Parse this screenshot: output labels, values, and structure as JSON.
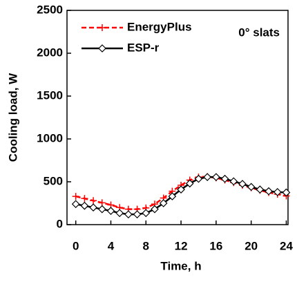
{
  "chart_data": {
    "type": "line",
    "x": [
      0,
      1,
      2,
      3,
      4,
      5,
      6,
      7,
      8,
      9,
      10,
      11,
      12,
      13,
      14,
      15,
      16,
      17,
      18,
      19,
      20,
      21,
      22,
      23,
      24
    ],
    "series": [
      {
        "name": "EnergyPlus",
        "color": "#ff0000",
        "dash": true,
        "marker": "plus",
        "values": [
          330,
          305,
          280,
          255,
          230,
          200,
          180,
          180,
          195,
          240,
          310,
          390,
          460,
          520,
          555,
          560,
          545,
          520,
          490,
          460,
          430,
          400,
          375,
          355,
          335
        ]
      },
      {
        "name": "ESP-r",
        "color": "#000000",
        "dash": false,
        "marker": "diamond",
        "values": [
          240,
          220,
          200,
          180,
          160,
          135,
          120,
          120,
          135,
          180,
          250,
          330,
          410,
          480,
          535,
          555,
          555,
          535,
          505,
          475,
          440,
          410,
          390,
          380,
          375
        ]
      }
    ],
    "annotation": "0° slats",
    "xlabel": "Time, h",
    "ylabel": "Cooling load, W",
    "xlim": [
      -1,
      24.2
    ],
    "ylim": [
      0,
      2500
    ],
    "xticks": [
      0,
      4,
      8,
      12,
      16,
      20,
      24
    ],
    "yticks": [
      0,
      500,
      1000,
      1500,
      2000,
      2500
    ],
    "grid": false,
    "legend": "upper left"
  }
}
